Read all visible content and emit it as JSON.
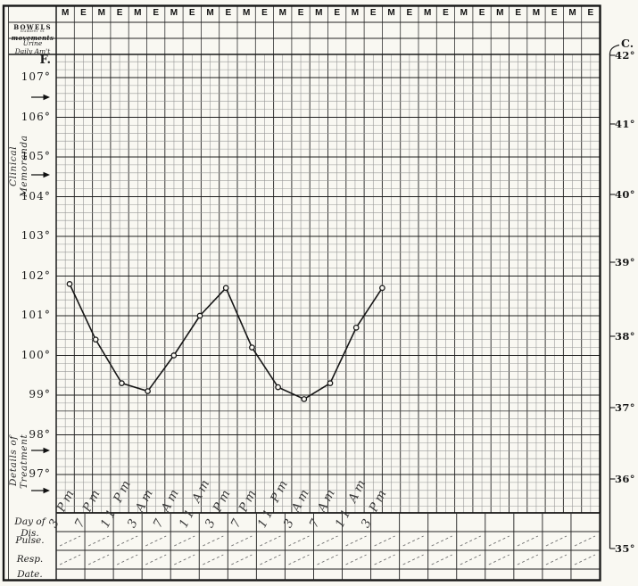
{
  "header_row": {
    "cells": [
      "M",
      "E",
      "M",
      "E",
      "M",
      "E",
      "M",
      "E",
      "M",
      "E",
      "M",
      "E",
      "M",
      "E",
      "M",
      "E",
      "M",
      "E",
      "M",
      "E",
      "M",
      "E",
      "M",
      "E",
      "M",
      "E",
      "M",
      "E",
      "M",
      "E"
    ]
  },
  "left_panel": {
    "bowels_line1": "BOWELS",
    "bowels_line2": "number of",
    "bowels_line3": "movements",
    "urine_line1": "Urine",
    "urine_line2": "Daily Am't",
    "memoranda_label": "Clinical Memoranda",
    "treatment_label": "Details of Treatment"
  },
  "bottom_panel": {
    "rows": [
      "Day of Dis.",
      "Pulse.",
      "Resp.",
      "Date."
    ]
  },
  "chart_data": {
    "type": "line",
    "x": [
      "3 PM",
      "7 PM",
      "11 PM",
      "3 AM",
      "7 AM",
      "11 AM",
      "3 PM",
      "7 PM",
      "11 PM",
      "3 AM",
      "7 AM",
      "11 AM",
      "3 PM"
    ],
    "temperatures_f": [
      101.8,
      100.4,
      99.3,
      99.1,
      100.0,
      101.0,
      101.7,
      100.2,
      99.2,
      98.9,
      99.3,
      100.7,
      101.7
    ],
    "yaxis_left": {
      "unit": "F.",
      "ticks": [
        "107°",
        "106°",
        "105°",
        "104°",
        "103°",
        "102°",
        "101°",
        "100°",
        "99°",
        "98°",
        "97°"
      ]
    },
    "yaxis_right": {
      "unit": "C.",
      "ticks": [
        "42°",
        "41°",
        "40°",
        "39°",
        "38°",
        "37°",
        "36°",
        "35°"
      ]
    },
    "ylim_f": [
      96,
      108
    ],
    "grid": "on",
    "marker": "open-circle",
    "pulse_resp_marks": "diagonal ditto dashes"
  }
}
